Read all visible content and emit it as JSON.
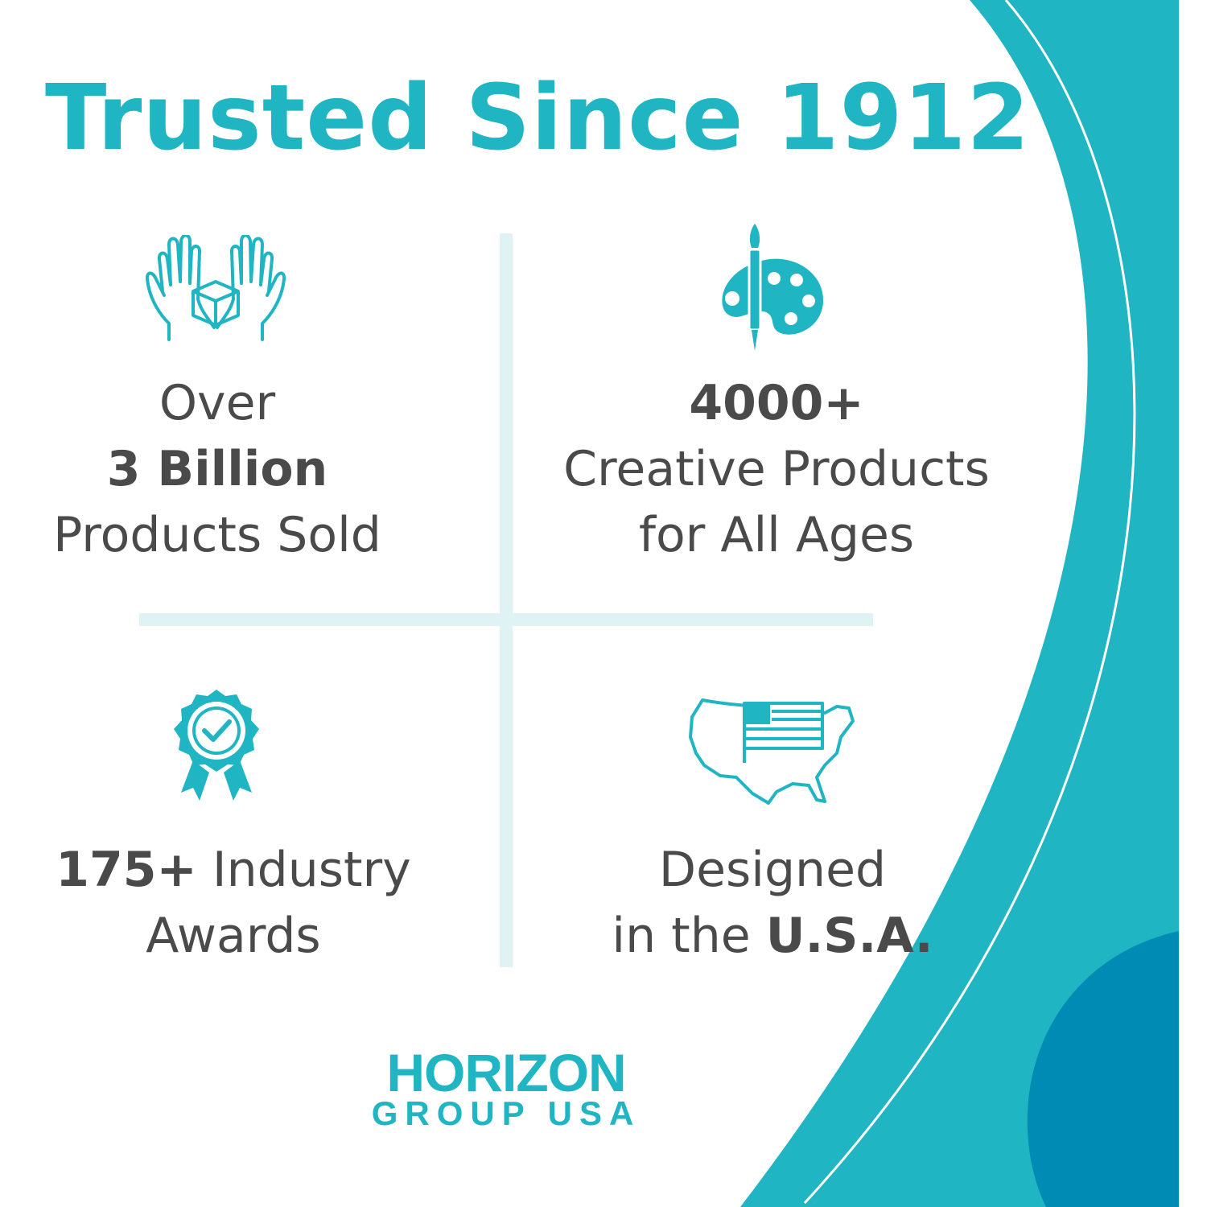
{
  "colors": {
    "accent": "#20b5c2",
    "dark_accent": "#008bb5",
    "text": "#4a4a4a",
    "divider": "#dff3f5"
  },
  "title": "Trusted Since 1912",
  "features": [
    {
      "icon": "hands-holding-box-icon",
      "line1": "Over",
      "bold": "3 Billion",
      "line3": "Products Sold"
    },
    {
      "icon": "paint-palette-brush-icon",
      "bold": "4000+",
      "line2": "Creative Products",
      "line3": "for All Ages"
    },
    {
      "icon": "award-ribbon-check-icon",
      "bold": "175+",
      "rest": " Industry",
      "line2": "Awards"
    },
    {
      "icon": "usa-map-flag-icon",
      "line1": "Designed",
      "pre": "in the ",
      "bold": "U.S.A."
    }
  ],
  "logo": {
    "line1": "HORIZON",
    "line2": "GROUP USA"
  }
}
